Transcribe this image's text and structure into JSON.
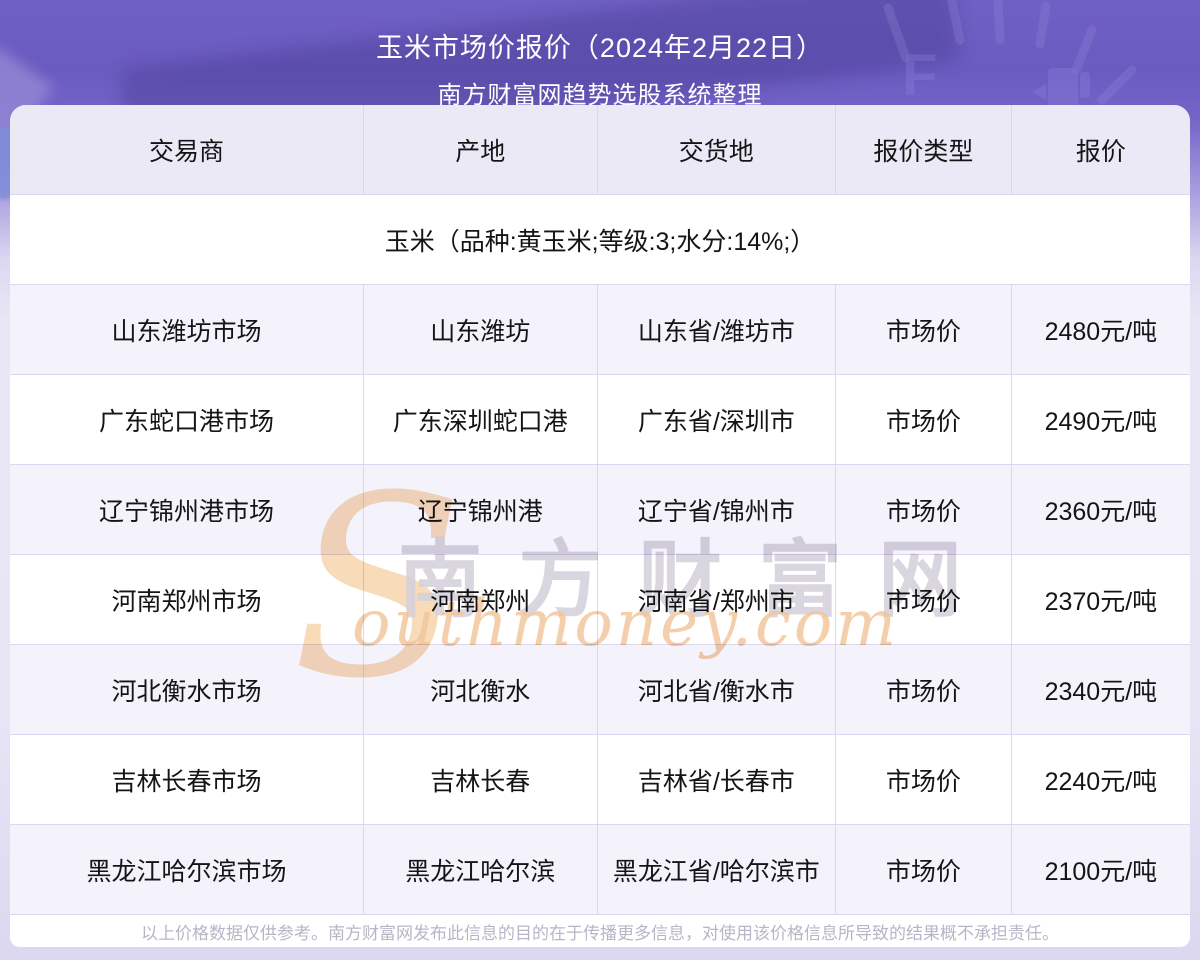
{
  "header": {
    "title_line1": "玉米市场价报价（2024年2月22日）",
    "title_line2": "南方财富网趋势选股系统整理"
  },
  "table": {
    "columns": [
      "交易商",
      "产地",
      "交货地",
      "报价类型",
      "报价"
    ],
    "category_row": "玉米（品种:黄玉米;等级:3;水分:14%;）",
    "rows": [
      {
        "trader": "山东潍坊市场",
        "origin": "山东潍坊",
        "delivery": "山东省/潍坊市",
        "quote_type": "市场价",
        "price": "2480元/吨"
      },
      {
        "trader": "广东蛇口港市场",
        "origin": "广东深圳蛇口港",
        "delivery": "广东省/深圳市",
        "quote_type": "市场价",
        "price": "2490元/吨"
      },
      {
        "trader": "辽宁锦州港市场",
        "origin": "辽宁锦州港",
        "delivery": "辽宁省/锦州市",
        "quote_type": "市场价",
        "price": "2360元/吨"
      },
      {
        "trader": "河南郑州市场",
        "origin": "河南郑州",
        "delivery": "河南省/郑州市",
        "quote_type": "市场价",
        "price": "2370元/吨"
      },
      {
        "trader": "河北衡水市场",
        "origin": "河北衡水",
        "delivery": "河北省/衡水市",
        "quote_type": "市场价",
        "price": "2340元/吨"
      },
      {
        "trader": "吉林长春市场",
        "origin": "吉林长春",
        "delivery": "吉林省/长春市",
        "quote_type": "市场价",
        "price": "2240元/吨"
      },
      {
        "trader": "黑龙江哈尔滨市场",
        "origin": "黑龙江哈尔滨",
        "delivery": "黑龙江省/哈尔滨市",
        "quote_type": "市场价",
        "price": "2100元/吨"
      }
    ]
  },
  "watermark": {
    "swoosh": "S",
    "cn": "南方财富网",
    "en": "outhmoney.com"
  },
  "footer": {
    "disclaimer": "以上价格数据仅供参考。南方财富网发布此信息的目的在于传播更多信息，对使用该价格信息所导致的结果概不承担责任。"
  },
  "colors": {
    "background_purple": "#6f60c5",
    "header_row_bg": "#ece9f7",
    "stripe_row_bg": "#f4f2fb",
    "grid_line": "#dcd7ee",
    "watermark_orange": "#f2c497",
    "watermark_gray": "#d4cfda",
    "footer_text": "#b9b5c7"
  }
}
